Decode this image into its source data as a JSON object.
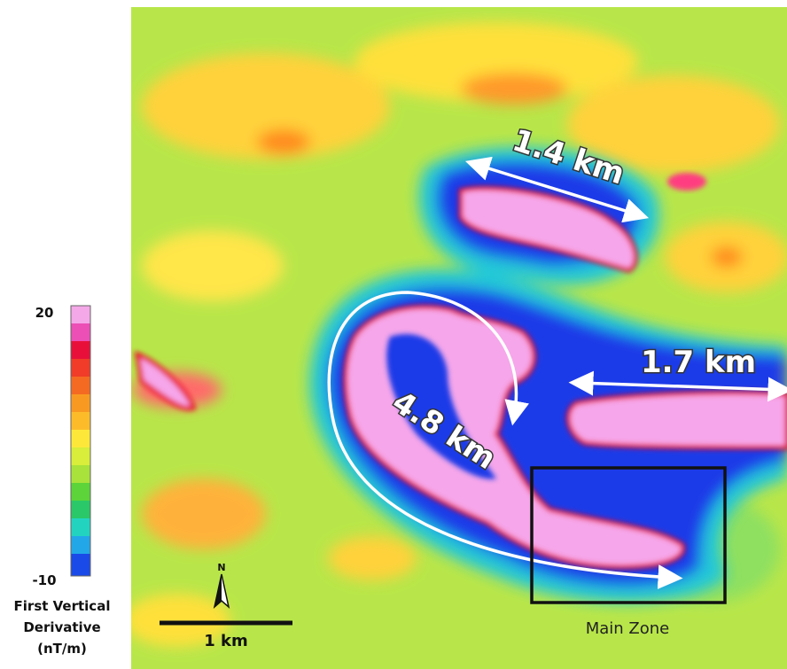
{
  "legend": {
    "max": 20,
    "min": -10,
    "title_lines": [
      "First Vertical",
      "Derivative",
      "(nT/m)"
    ]
  },
  "annotations": [
    "1.4 km",
    "1.7 km",
    "4.8 km"
  ],
  "scale_bar": {
    "label": "1 km"
  },
  "north_arrow": {
    "label": "N"
  },
  "zone_box": {
    "label": "Main Zone"
  }
}
